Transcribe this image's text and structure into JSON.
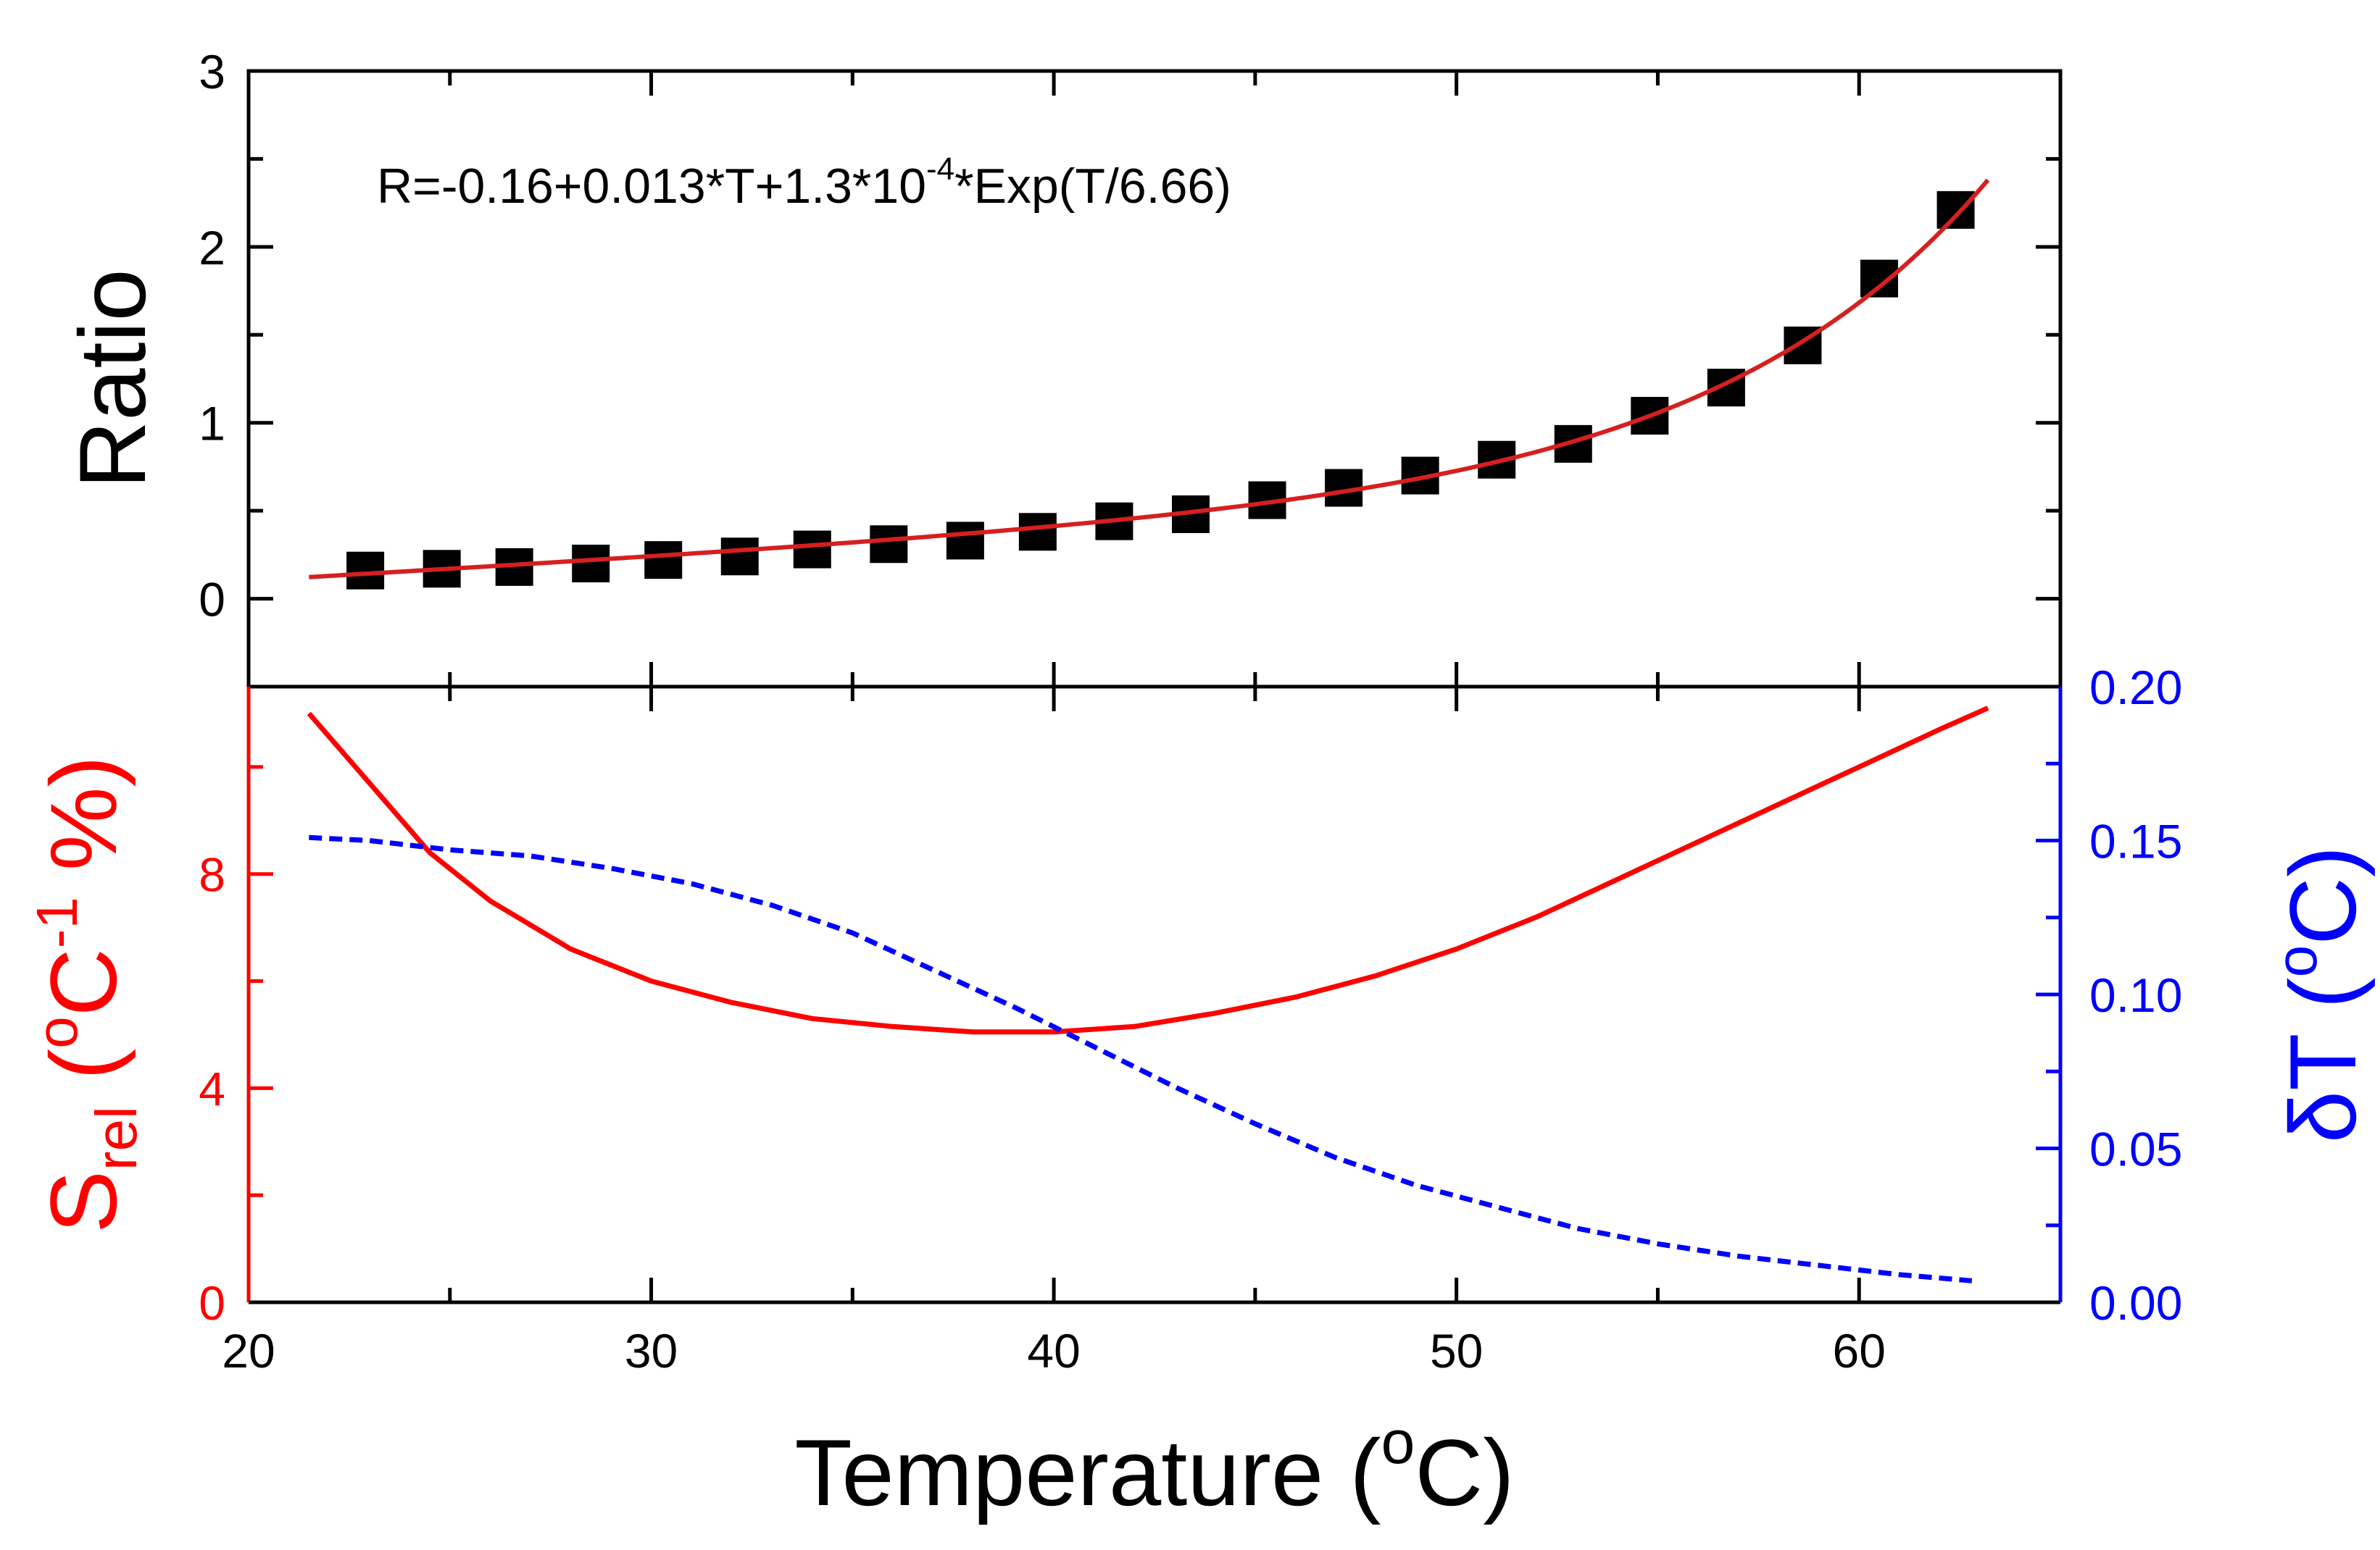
{
  "chart_data": [
    {
      "type": "scatter",
      "panel": "top",
      "ylabel": "Ratio",
      "annotation": {
        "base": "R=-0.16+0.013*T+1.3*10",
        "exp": "-4",
        "tail": "*Exp(T/6.66)"
      },
      "xlim": [
        20,
        65
      ],
      "ylim": [
        -0.5,
        3
      ],
      "yticks": [
        0,
        1,
        2,
        3
      ],
      "marker_color": "#000000",
      "fit_color": "#d61f1f",
      "fit": {
        "a": -0.16,
        "b": 0.013,
        "c": 0.00013,
        "d": 6.66,
        "x_range": [
          21.5,
          63.2
        ]
      },
      "series": [
        {
          "name": "Ratio data",
          "x": [
            22.9,
            24.8,
            26.6,
            28.5,
            30.3,
            32.2,
            34.0,
            35.9,
            37.8,
            39.6,
            41.5,
            43.4,
            45.3,
            47.2,
            49.1,
            51.0,
            52.9,
            54.8,
            56.7,
            58.6,
            60.5,
            62.4
          ],
          "y": [
            0.16,
            0.17,
            0.18,
            0.2,
            0.22,
            0.24,
            0.28,
            0.31,
            0.33,
            0.38,
            0.44,
            0.48,
            0.56,
            0.63,
            0.7,
            0.79,
            0.88,
            1.04,
            1.2,
            1.44,
            1.82,
            2.21
          ]
        }
      ]
    },
    {
      "type": "line",
      "panel": "bottom",
      "xlabel": {
        "base": "Temperature (",
        "sup": "o",
        "tail": "C)"
      },
      "xlim": [
        20,
        65
      ],
      "xticks": [
        20,
        30,
        40,
        50,
        60
      ],
      "left_axis": {
        "label": {
          "s": "S",
          "sub": "rel",
          "mid": " (",
          "sup1": "o",
          "c": "C",
          "sup2": "-1",
          "tail": " %)"
        },
        "ylim": [
          0,
          11.5
        ],
        "ticks": [
          0,
          4,
          8
        ],
        "color": "#ff0000"
      },
      "right_axis": {
        "label": {
          "s": "δT (",
          "sup": "o",
          "tail": "C)"
        },
        "ylim": [
          0,
          0.2
        ],
        "ticks": [
          "0.00",
          "0.05",
          "0.10",
          "0.15",
          "0.20"
        ],
        "color": "#0000ff"
      },
      "series": [
        {
          "name": "S_rel",
          "axis": "left",
          "color": "#ff0000",
          "style": "solid",
          "x": [
            21.5,
            23,
            24.5,
            26,
            28,
            30,
            32,
            34,
            36,
            38,
            40,
            42,
            44,
            46,
            48,
            50,
            52,
            54,
            56,
            58,
            60,
            62,
            63.2
          ],
          "y": [
            11.0,
            9.7,
            8.4,
            7.5,
            6.6,
            6.0,
            5.6,
            5.3,
            5.15,
            5.05,
            5.05,
            5.15,
            5.4,
            5.7,
            6.1,
            6.6,
            7.2,
            7.9,
            8.6,
            9.3,
            10.0,
            10.7,
            11.1
          ]
        },
        {
          "name": "δT",
          "axis": "right",
          "color": "#0000ff",
          "style": "dashed",
          "x": [
            21.5,
            23,
            25,
            27,
            29,
            31,
            33,
            35,
            37,
            39,
            41,
            43,
            45,
            47,
            49,
            51,
            53,
            55,
            57,
            59,
            61,
            62.8
          ],
          "y": [
            0.151,
            0.15,
            0.147,
            0.145,
            0.141,
            0.136,
            0.129,
            0.12,
            0.108,
            0.096,
            0.083,
            0.07,
            0.058,
            0.047,
            0.038,
            0.031,
            0.024,
            0.019,
            0.015,
            0.012,
            0.009,
            0.007
          ]
        }
      ]
    }
  ]
}
